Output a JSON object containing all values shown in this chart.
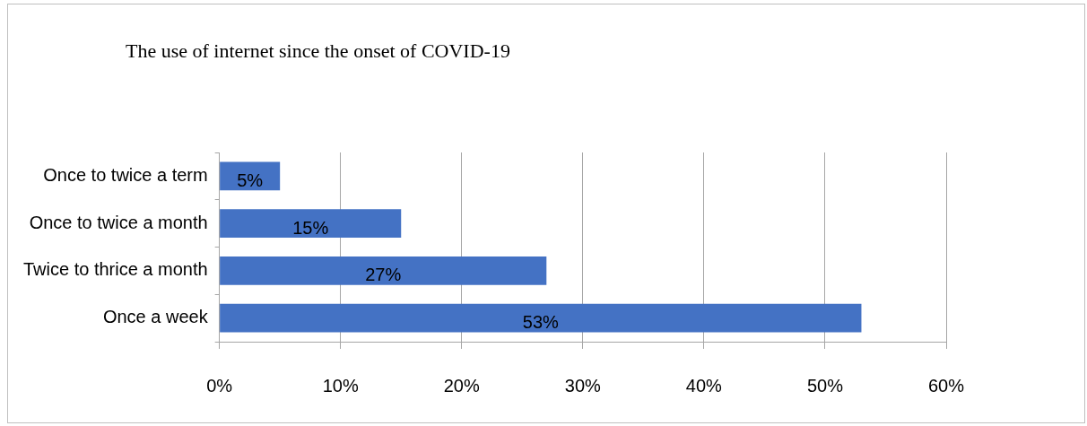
{
  "chart_data": {
    "type": "bar",
    "orientation": "horizontal",
    "title": "The use of internet since the onset of COVID-19",
    "categories": [
      "Once to twice a term",
      "Once to twice a month",
      "Twice to thrice a month",
      "Once a week"
    ],
    "values": [
      5,
      15,
      27,
      53
    ],
    "color": "#4472c4",
    "value_labels": [
      "5%",
      "15%",
      "27%",
      "53%"
    ],
    "xlim": [
      0,
      60
    ],
    "xticks": [
      {
        "value": 0,
        "label": "0%"
      },
      {
        "value": 10,
        "label": "10%"
      },
      {
        "value": 20,
        "label": "20%"
      },
      {
        "value": 30,
        "label": "30%"
      },
      {
        "value": 40,
        "label": "40%"
      },
      {
        "value": 50,
        "label": "50%"
      },
      {
        "value": 60,
        "label": "60%"
      }
    ],
    "grid": "x",
    "legend": false
  }
}
